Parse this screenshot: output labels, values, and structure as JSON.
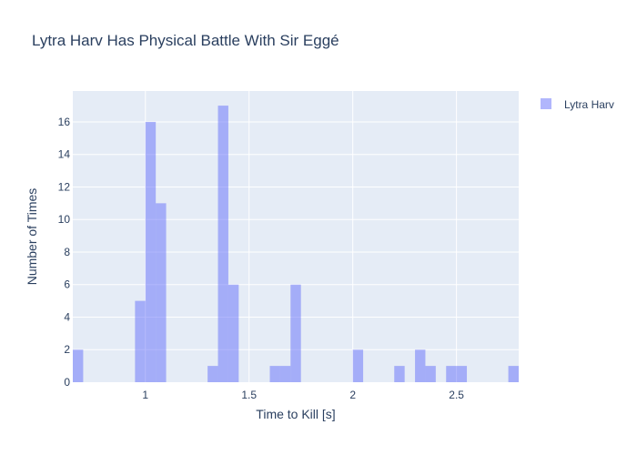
{
  "chart_data": {
    "type": "bar",
    "title": "Lytra Harv Has Physical Battle With Sir Eggé",
    "xlabel": "Time to Kill [s]",
    "ylabel": "Number of Times",
    "xlim": [
      0.65,
      2.8
    ],
    "ylim": [
      0,
      17.9
    ],
    "bin_width": 0.05,
    "x_ticks": [
      1,
      1.5,
      2,
      2.5
    ],
    "x_tick_labels": [
      "1",
      "1.5",
      "2",
      "2.5"
    ],
    "y_ticks": [
      0,
      2,
      4,
      6,
      8,
      10,
      12,
      14,
      16
    ],
    "y_tick_labels": [
      "0",
      "2",
      "4",
      "6",
      "8",
      "10",
      "12",
      "14",
      "16"
    ],
    "grid": true,
    "legend": "top-right",
    "series": [
      {
        "name": "Lytra Harv",
        "color": "#636efa",
        "opacity": 0.5,
        "bins": [
          {
            "x0": 0.65,
            "x1": 0.7,
            "count": 2
          },
          {
            "x0": 0.95,
            "x1": 1.0,
            "count": 5
          },
          {
            "x0": 1.0,
            "x1": 1.05,
            "count": 16
          },
          {
            "x0": 1.05,
            "x1": 1.1,
            "count": 11
          },
          {
            "x0": 1.3,
            "x1": 1.35,
            "count": 1
          },
          {
            "x0": 1.35,
            "x1": 1.4,
            "count": 17
          },
          {
            "x0": 1.4,
            "x1": 1.45,
            "count": 6
          },
          {
            "x0": 1.6,
            "x1": 1.65,
            "count": 1
          },
          {
            "x0": 1.65,
            "x1": 1.7,
            "count": 1
          },
          {
            "x0": 1.7,
            "x1": 1.75,
            "count": 6
          },
          {
            "x0": 2.0,
            "x1": 2.05,
            "count": 2
          },
          {
            "x0": 2.2,
            "x1": 2.25,
            "count": 1
          },
          {
            "x0": 2.3,
            "x1": 2.35,
            "count": 2
          },
          {
            "x0": 2.35,
            "x1": 2.4,
            "count": 1
          },
          {
            "x0": 2.45,
            "x1": 2.5,
            "count": 1
          },
          {
            "x0": 2.5,
            "x1": 2.55,
            "count": 1
          },
          {
            "x0": 2.75,
            "x1": 2.8,
            "count": 1
          }
        ]
      }
    ]
  }
}
